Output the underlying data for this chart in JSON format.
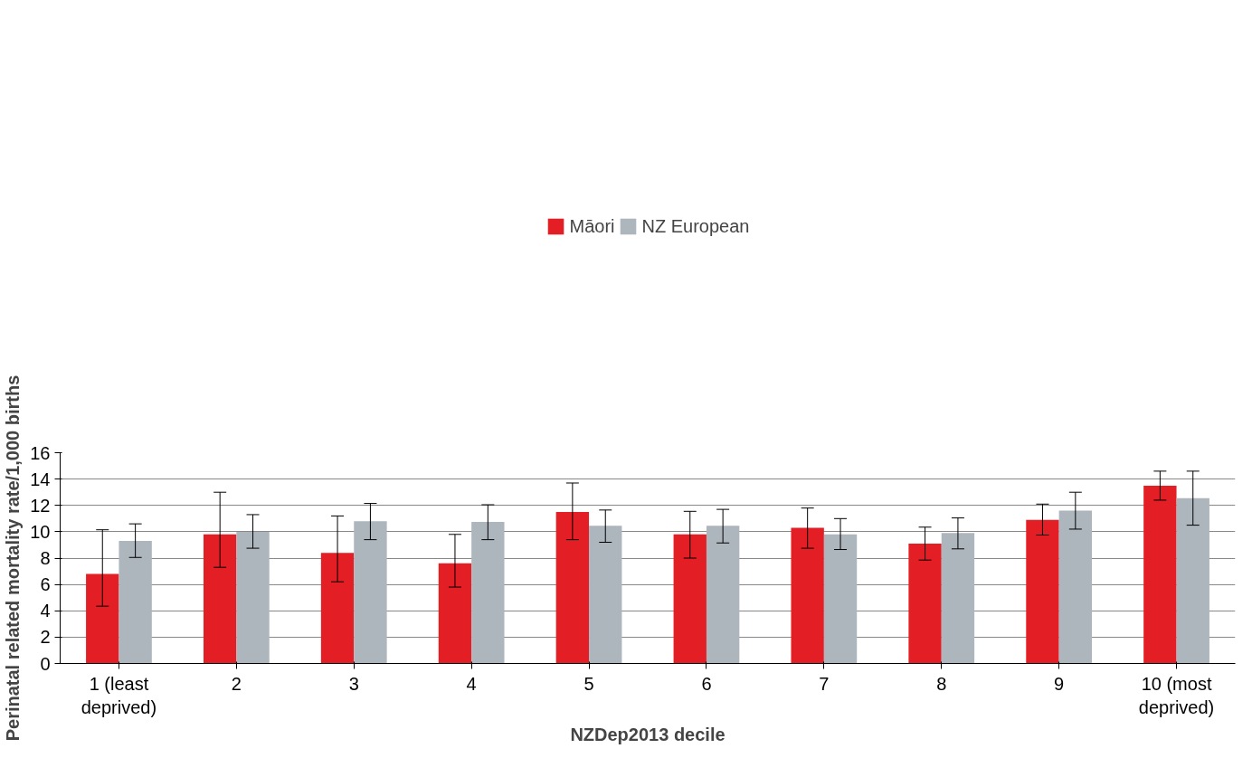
{
  "chart_data": {
    "type": "bar",
    "xlabel": "NZDep2013 decile",
    "ylabel": "Perinatal related mortality rate/1,000 births",
    "categories": [
      "1 (least\ndeprived)",
      "2",
      "3",
      "4",
      "5",
      "6",
      "7",
      "8",
      "9",
      "10 (most\ndeprived)"
    ],
    "series": [
      {
        "name": "Māori",
        "color": "#e31e24",
        "values": [
          6.8,
          9.8,
          8.4,
          7.6,
          11.5,
          9.8,
          10.3,
          9.1,
          10.9,
          13.5
        ],
        "errors": [
          [
            4.35,
            10.15
          ],
          [
            7.3,
            13.0
          ],
          [
            6.2,
            11.2
          ],
          [
            5.8,
            9.8
          ],
          [
            9.4,
            13.7
          ],
          [
            8.0,
            11.55
          ],
          [
            8.75,
            11.8
          ],
          [
            7.85,
            10.35
          ],
          [
            9.75,
            12.1
          ],
          [
            12.4,
            14.6
          ]
        ]
      },
      {
        "name": "NZ European",
        "color": "#adb5bd",
        "values": [
          9.3,
          10.0,
          10.8,
          10.75,
          10.45,
          10.45,
          9.8,
          9.9,
          11.6,
          12.55
        ],
        "errors": [
          [
            8.05,
            10.6
          ],
          [
            8.75,
            11.3
          ],
          [
            9.4,
            12.15
          ],
          [
            9.4,
            12.05
          ],
          [
            9.2,
            11.65
          ],
          [
            9.15,
            11.7
          ],
          [
            8.65,
            11.0
          ],
          [
            8.7,
            11.05
          ],
          [
            10.2,
            13.0
          ],
          [
            10.5,
            14.6
          ]
        ]
      }
    ],
    "ylim": [
      0,
      16
    ],
    "yticks": [
      0,
      2,
      4,
      6,
      8,
      10,
      12,
      14,
      16
    ],
    "grid": "y",
    "legend": "top"
  }
}
